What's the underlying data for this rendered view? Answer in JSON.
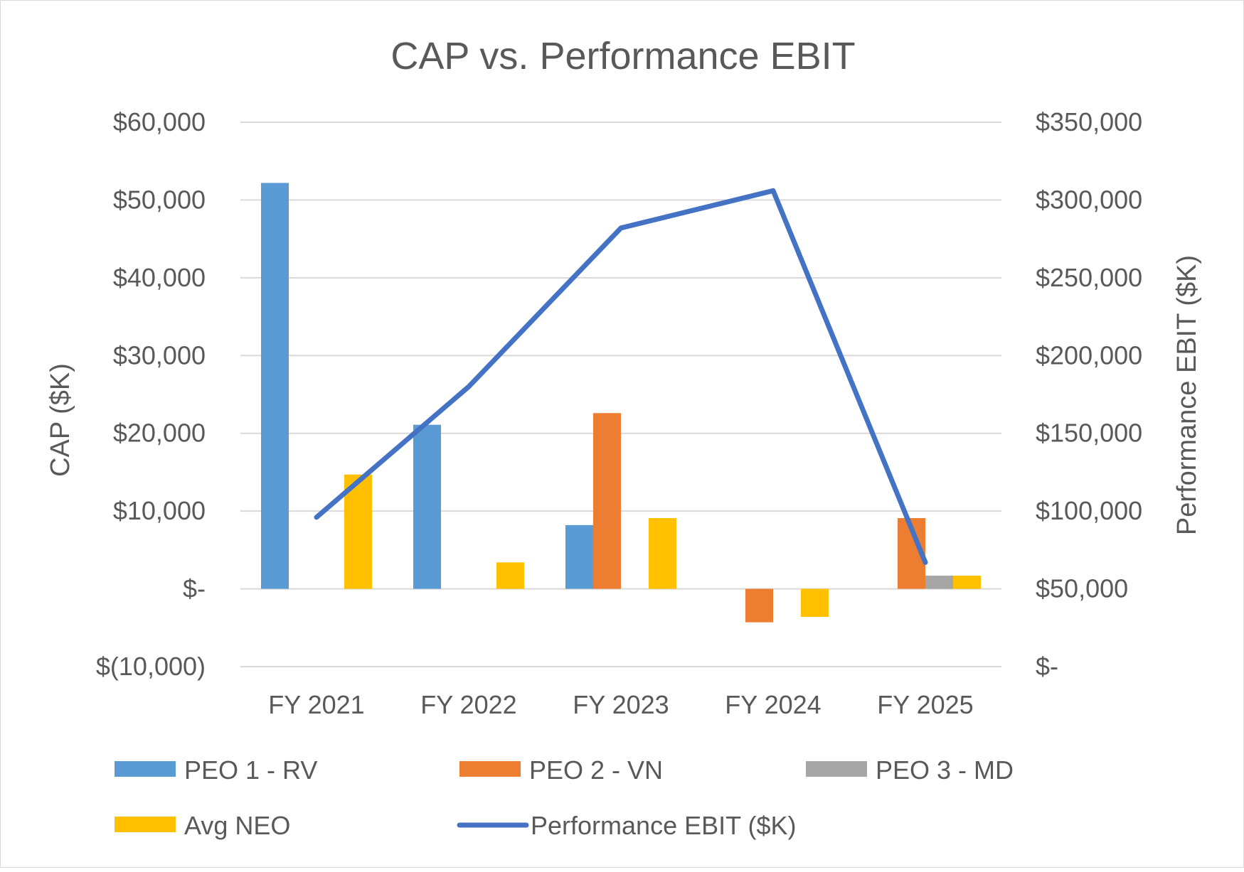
{
  "chart_data": {
    "type": "bar",
    "title": "CAP vs. Performance EBIT",
    "categories": [
      "FY 2021",
      "FY 2022",
      "FY 2023",
      "FY 2024",
      "FY 2025"
    ],
    "y_left": {
      "label": "CAP ($K)",
      "min": -10000,
      "max": 60000,
      "step": 10000,
      "tick_labels": [
        "$(10,000)",
        "$-",
        "$10,000",
        "$20,000",
        "$30,000",
        "$40,000",
        "$50,000",
        "$60,000"
      ]
    },
    "y_right": {
      "label": "Performance EBIT ($K)",
      "min": 0,
      "max": 350000,
      "step": 50000,
      "tick_labels": [
        "$-",
        "$50,000",
        "$100,000",
        "$150,000",
        "$200,000",
        "$250,000",
        "$300,000",
        "$350,000"
      ]
    },
    "grid": true,
    "legend_position": "bottom",
    "series": [
      {
        "name": "PEO 1 - RV",
        "type": "bar",
        "axis": "left",
        "color": "#5b9bd5",
        "values": [
          52200,
          21100,
          8200,
          null,
          null
        ]
      },
      {
        "name": "PEO 2 - VN",
        "type": "bar",
        "axis": "left",
        "color": "#ed7d31",
        "values": [
          null,
          null,
          22600,
          -4300,
          9100
        ]
      },
      {
        "name": "PEO 3 - MD",
        "type": "bar",
        "axis": "left",
        "color": "#a5a5a5",
        "values": [
          null,
          null,
          null,
          null,
          1700
        ]
      },
      {
        "name": "Avg NEO",
        "type": "bar",
        "axis": "left",
        "color": "#ffc000",
        "values": [
          14700,
          3400,
          9100,
          -3600,
          1700
        ]
      },
      {
        "name": "Performance EBIT ($K)",
        "type": "line",
        "axis": "right",
        "color": "#4472c4",
        "values": [
          96000,
          180000,
          282000,
          306000,
          67000
        ]
      }
    ]
  }
}
